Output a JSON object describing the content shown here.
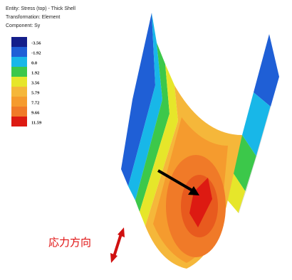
{
  "header": {
    "entity": "Entity: Stress (top) - Thick Shell",
    "transformation": "Transformation: Element",
    "component": "Component: Sy"
  },
  "legend": {
    "labels": [
      "-3.56",
      "-1.92",
      "0.0",
      "1.92",
      "3.56",
      "5.79",
      "7.72",
      "9.66",
      "11.59"
    ]
  },
  "annotation": "応力方向"
}
